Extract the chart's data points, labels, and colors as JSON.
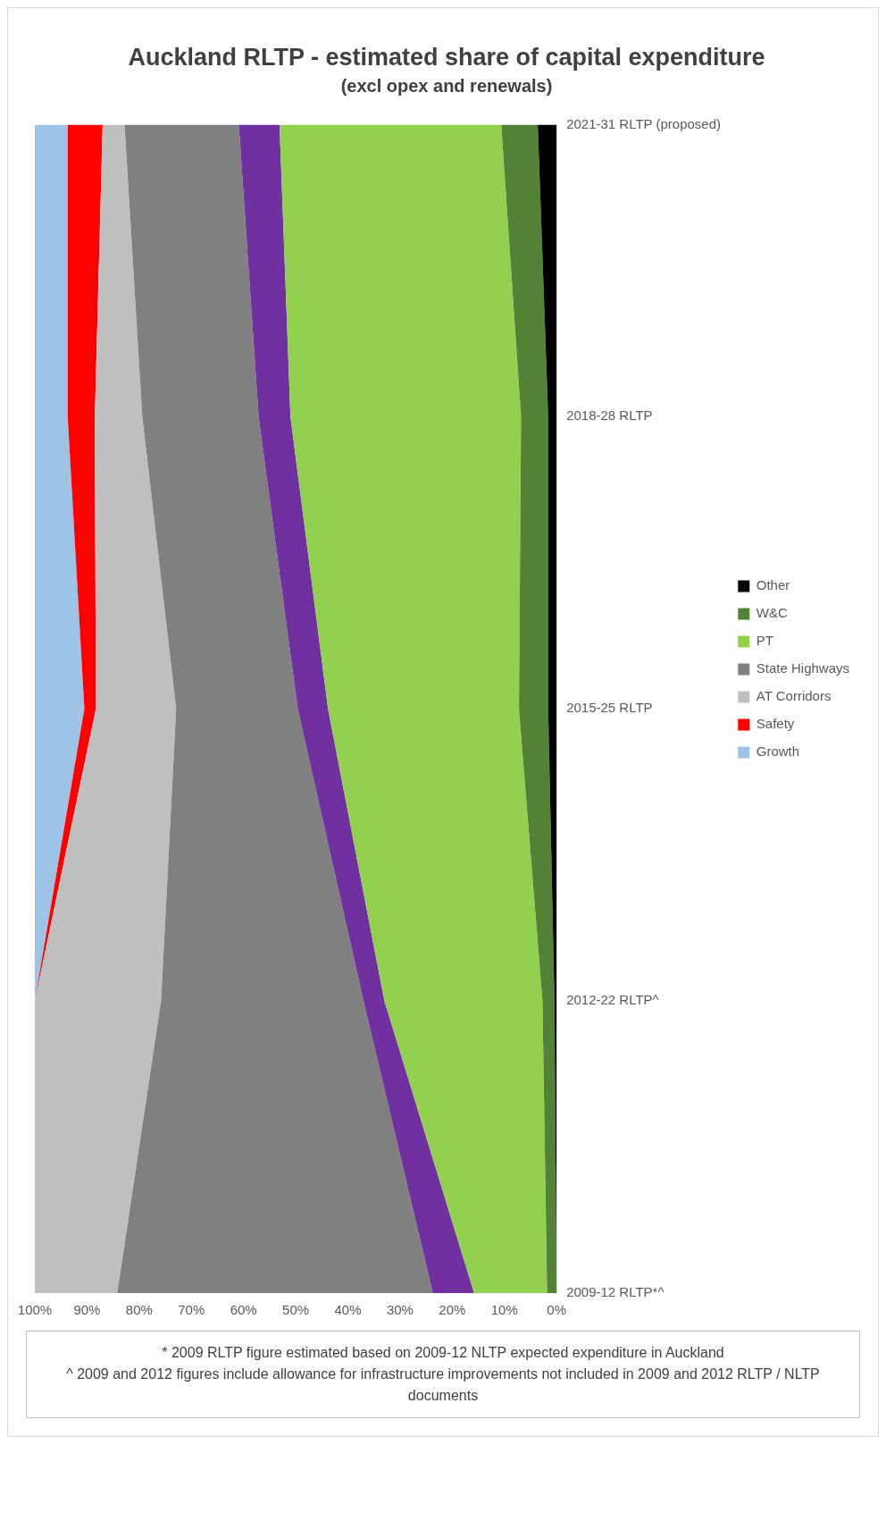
{
  "chart_data": {
    "type": "area",
    "stacked": true,
    "orientation": "horizontal",
    "title": "Auckland RLTP - estimated share of capital expenditure",
    "subtitle": "(excl opex and renewals)",
    "categories": [
      "2021-31 RLTP (proposed)",
      "2018-28 RLTP",
      "2015-25 RLTP",
      "2012-22 RLTP^",
      "2009-12 RLTP*^"
    ],
    "series": [
      {
        "name": "Other",
        "color": "#000000",
        "values": [
          3.6,
          1.6,
          1.6,
          0.4,
          0
        ]
      },
      {
        "name": "W&C",
        "color": "#538135",
        "values": [
          7.0,
          5.2,
          5.6,
          2.3,
          1.8
        ]
      },
      {
        "name": "PT",
        "color": "#92d050",
        "values": [
          42.5,
          44.2,
          36.6,
          30.3,
          14.0
        ]
      },
      {
        "color": "#7030a0",
        "values": [
          7.8,
          6.1,
          5.8,
          4.0,
          7.9
        ]
      },
      {
        "name": "State Highways",
        "color": "#808080",
        "values": [
          21.9,
          22.3,
          23.3,
          38.8,
          60.5
        ]
      },
      {
        "name": "AT Corridors",
        "color": "#bfbfbf",
        "values": [
          4.2,
          9.1,
          15.4,
          24.2,
          15.8
        ]
      },
      {
        "name": "Safety",
        "color": "#ff0000",
        "values": [
          6.7,
          5.2,
          2.2,
          0,
          0
        ]
      },
      {
        "name": "Growth",
        "color": "#9dc3e6",
        "values": [
          6.3,
          6.3,
          9.5,
          0,
          0
        ]
      }
    ],
    "xlim": [
      100,
      0
    ],
    "xticks": [
      {
        "value": 100,
        "label": "100%"
      },
      {
        "value": 90,
        "label": "90%"
      },
      {
        "value": 80,
        "label": "80%"
      },
      {
        "value": 70,
        "label": "70%"
      },
      {
        "value": 60,
        "label": "60%"
      },
      {
        "value": 50,
        "label": "50%"
      },
      {
        "value": 40,
        "label": "40%"
      },
      {
        "value": 30,
        "label": "30%"
      },
      {
        "value": 20,
        "label": "20%"
      },
      {
        "value": 10,
        "label": "10%"
      },
      {
        "value": 0,
        "label": "0%"
      }
    ],
    "grid": false,
    "legend": "right",
    "annotations": [
      "* 2009 RLTP figure estimated based on 2009-12 NLTP expected expenditure in Auckland",
      "^ 2009 and 2012 figures include allowance for infrastructure improvements not included in 2009 and 2012 RLTP / NLTP documents"
    ]
  }
}
